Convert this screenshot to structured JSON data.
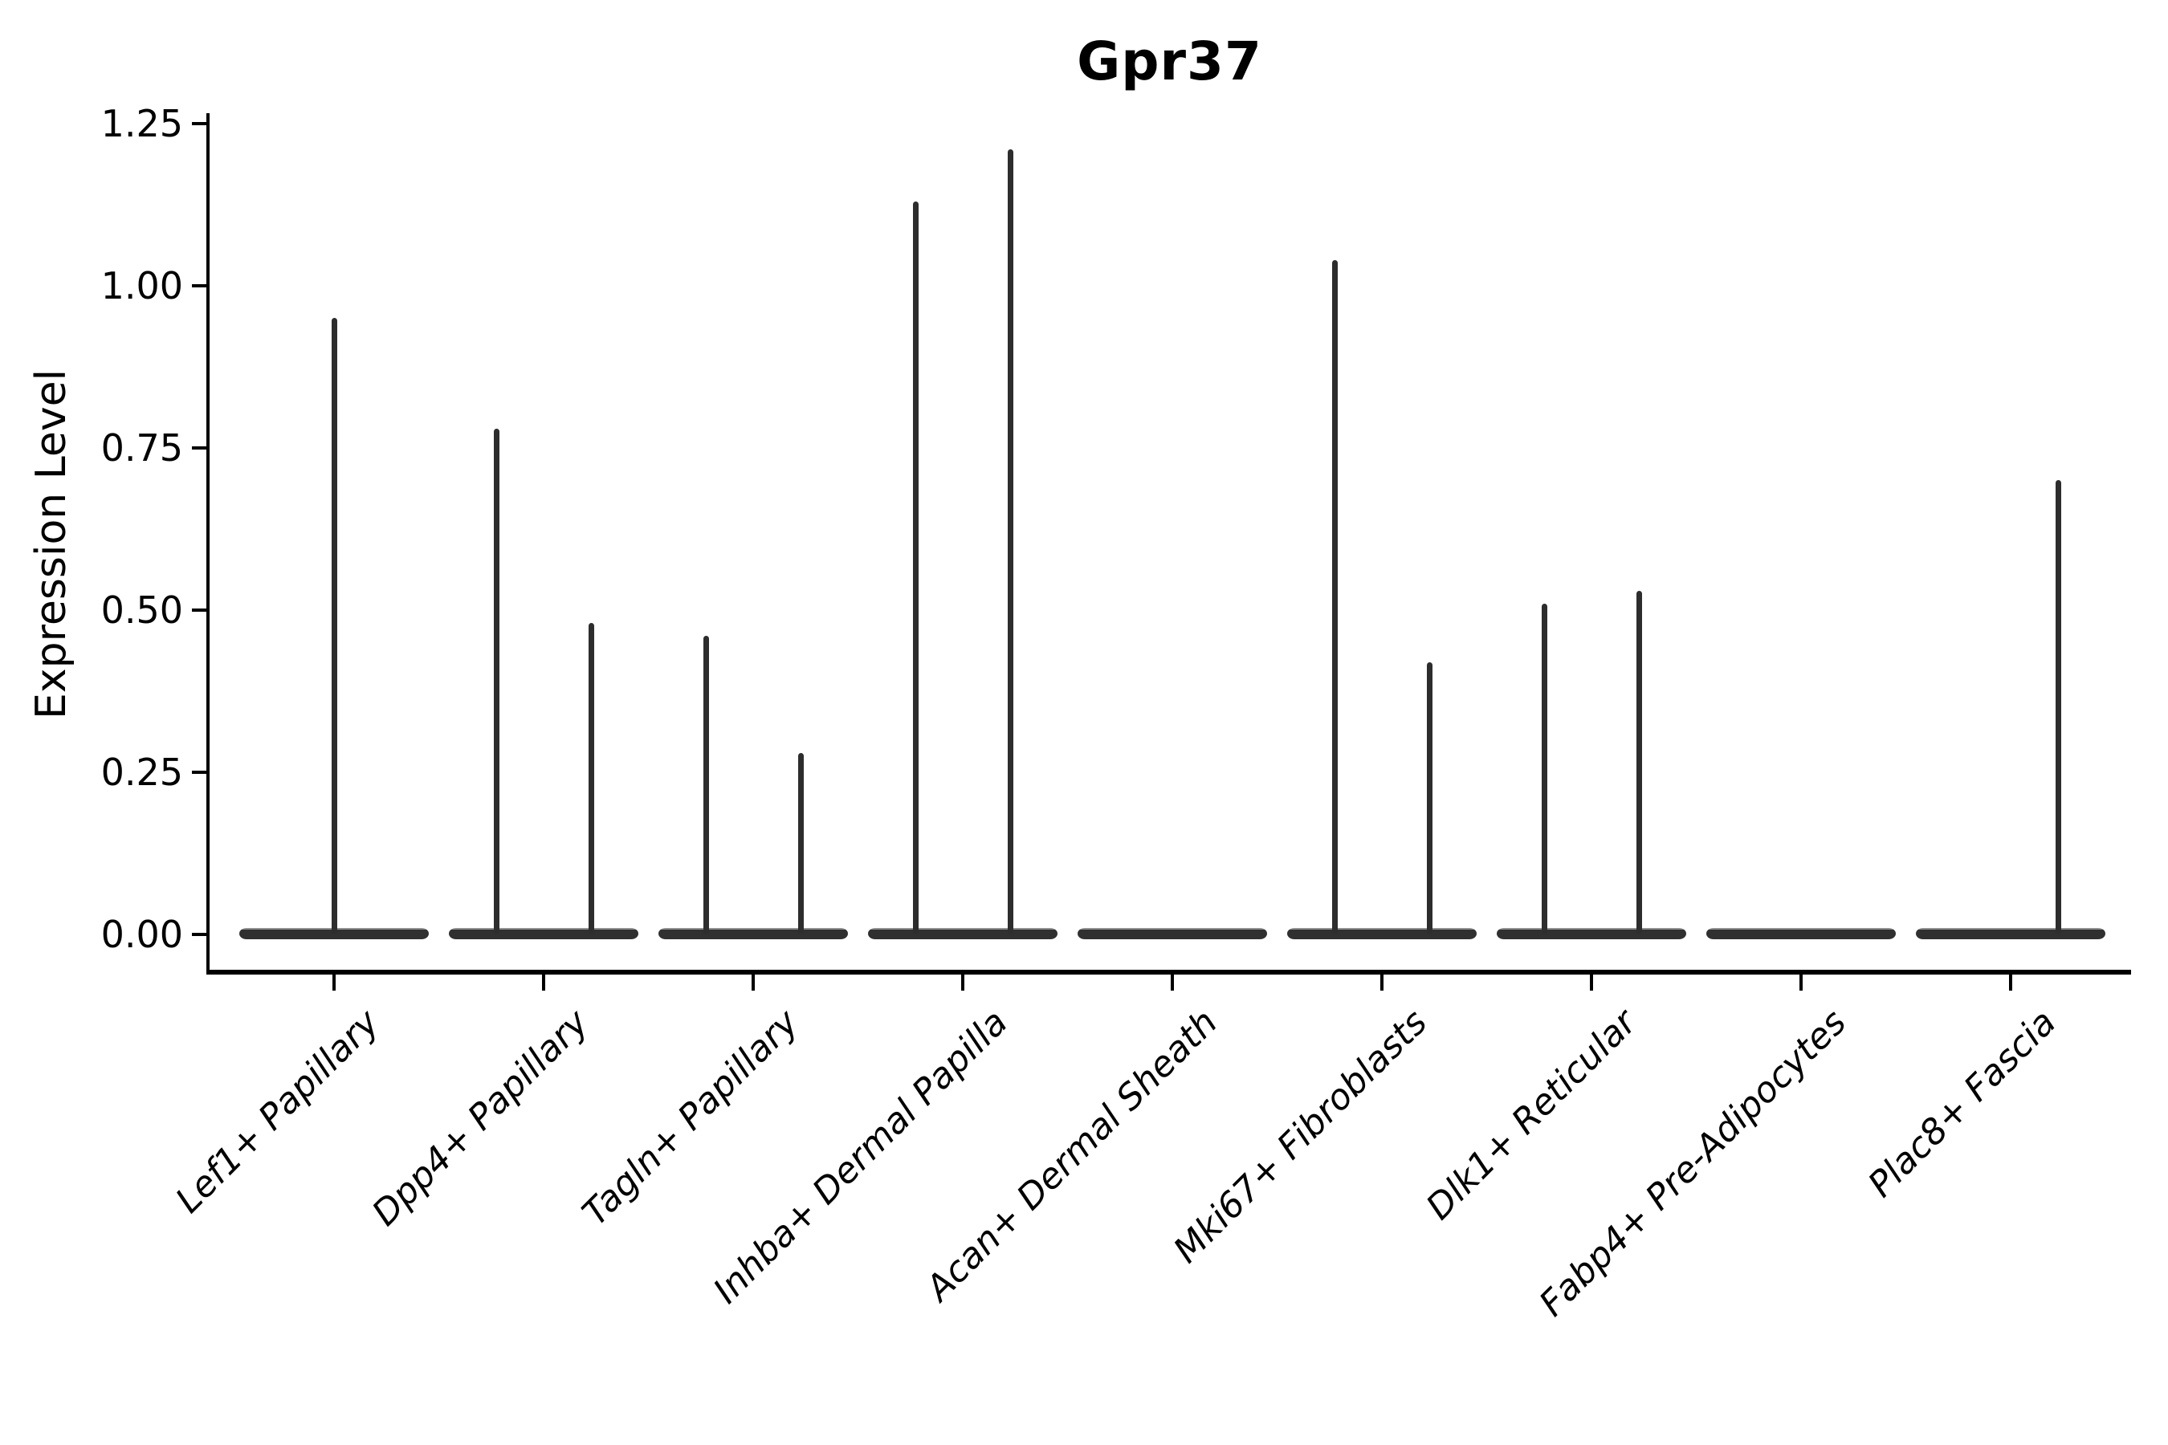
{
  "chart_data": {
    "type": "violin",
    "title": "Gpr37",
    "ylabel": "Expression Level",
    "xlabel": "",
    "ylim": [
      0,
      1.25
    ],
    "yticks": [
      {
        "value": 0.0,
        "label": "0.00"
      },
      {
        "value": 0.25,
        "label": "0.25"
      },
      {
        "value": 0.5,
        "label": "0.50"
      },
      {
        "value": 0.75,
        "label": "0.75"
      },
      {
        "value": 1.0,
        "label": "1.00"
      },
      {
        "value": 1.25,
        "label": "1.25"
      }
    ],
    "grid": false,
    "legend": null,
    "style_notes": {
      "violin_color": "#2d2d2d",
      "axis_color": "#000000",
      "background": "#ffffff",
      "x_labels_rotation_deg": 45,
      "x_labels_italic": true,
      "violins_collapsed_at_zero": true
    },
    "categories": [
      {
        "label": "Lef1+ Papillary",
        "body_at_zero": true,
        "spikes": [
          {
            "pos": "center",
            "max": 0.95
          }
        ]
      },
      {
        "label": "Dpp4+ Papillary",
        "body_at_zero": true,
        "spikes": [
          {
            "pos": "left",
            "max": 0.78
          },
          {
            "pos": "right",
            "max": 0.48
          }
        ]
      },
      {
        "label": "Tagln+ Papillary",
        "body_at_zero": true,
        "spikes": [
          {
            "pos": "left",
            "max": 0.46
          },
          {
            "pos": "right",
            "max": 0.28
          }
        ]
      },
      {
        "label": "Inhba+ Dermal Papilla",
        "body_at_zero": true,
        "spikes": [
          {
            "pos": "left",
            "max": 1.13
          },
          {
            "pos": "right",
            "max": 1.21
          }
        ]
      },
      {
        "label": "Acan+ Dermal Sheath",
        "body_at_zero": true,
        "spikes": []
      },
      {
        "label": "Mki67+ Fibroblasts",
        "body_at_zero": true,
        "spikes": [
          {
            "pos": "left",
            "max": 1.04
          },
          {
            "pos": "right",
            "max": 0.42
          }
        ]
      },
      {
        "label": "Dlk1+ Reticular",
        "body_at_zero": true,
        "spikes": [
          {
            "pos": "left",
            "max": 0.51
          },
          {
            "pos": "right",
            "max": 0.53
          }
        ]
      },
      {
        "label": "Fabp4+ Pre-Adipocytes",
        "body_at_zero": true,
        "spikes": []
      },
      {
        "label": "Plac8+ Fascia",
        "body_at_zero": true,
        "spikes": [
          {
            "pos": "right",
            "max": 0.7
          }
        ]
      }
    ]
  }
}
